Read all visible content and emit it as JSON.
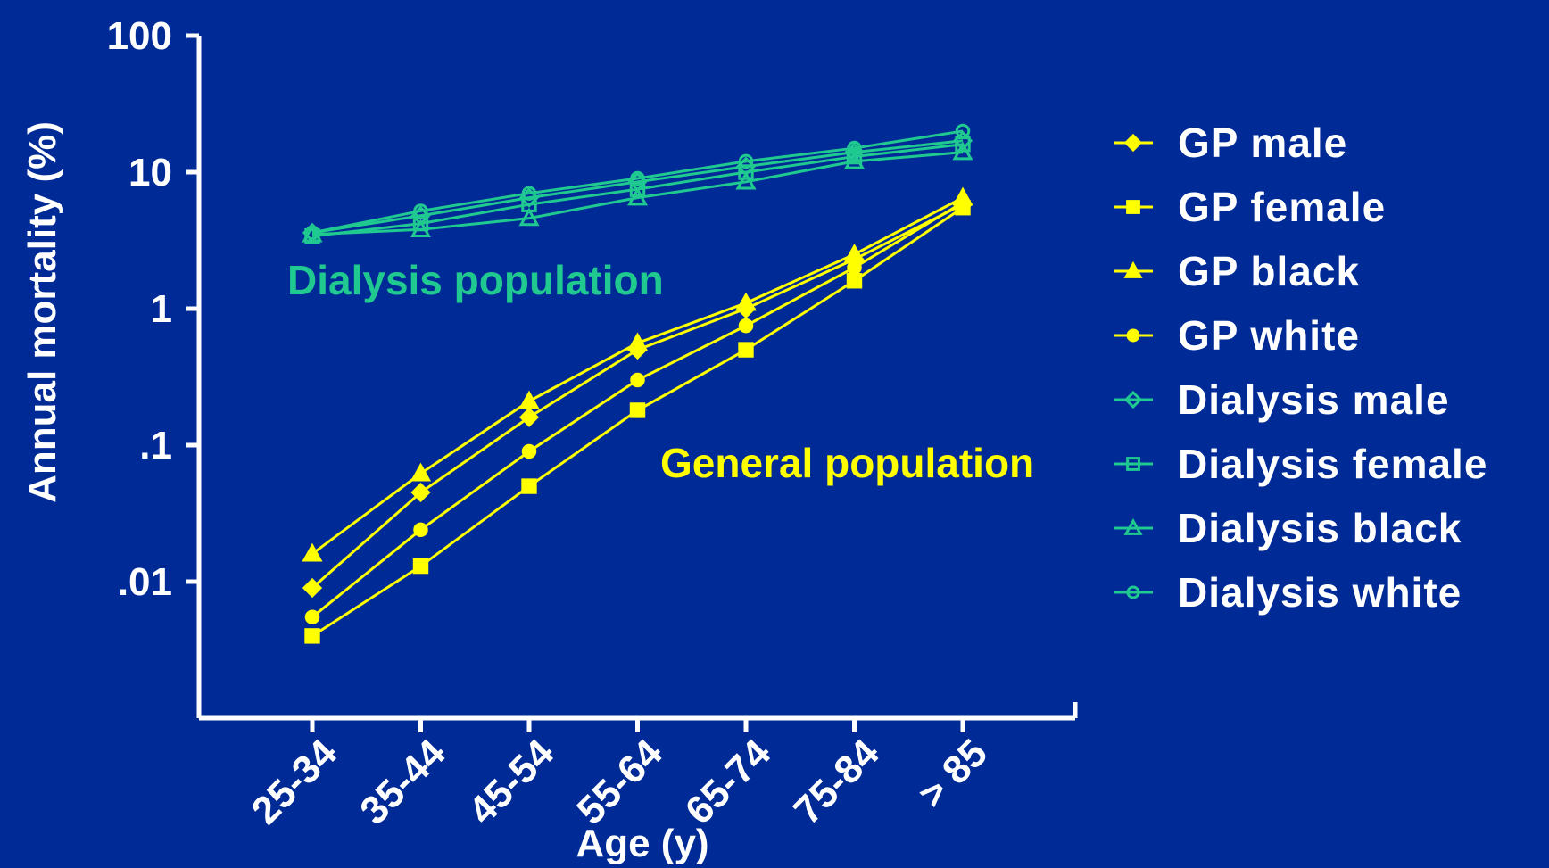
{
  "chart_data": {
    "type": "line",
    "ylabel": "Annual mortality (%)",
    "xlabel": "Age (y)",
    "y_scale": "log",
    "ylim": [
      0.001,
      100
    ],
    "yticks": [
      {
        "value": 100,
        "label": "100"
      },
      {
        "value": 10,
        "label": "10"
      },
      {
        "value": 1,
        "label": "1"
      },
      {
        "value": 0.1,
        "label": ".1"
      },
      {
        "value": 0.01,
        "label": ".01"
      }
    ],
    "categories": [
      "25-34",
      "35-44",
      "45-54",
      "55-64",
      "65-74",
      "75-84",
      "> 85"
    ],
    "grid": false,
    "legend_position": "right",
    "annotations": [
      {
        "text": "Dialysis population",
        "color": "#1fc98f"
      },
      {
        "text": "General population",
        "color": "#ffff00"
      }
    ],
    "series": [
      {
        "name": "GP male",
        "group": "gp",
        "marker": "diamond",
        "filled": true,
        "values": [
          0.009,
          0.045,
          0.16,
          0.5,
          1.0,
          2.3,
          5.8
        ]
      },
      {
        "name": "GP female",
        "group": "gp",
        "marker": "square",
        "filled": true,
        "values": [
          0.004,
          0.013,
          0.05,
          0.18,
          0.5,
          1.6,
          5.5
        ]
      },
      {
        "name": "GP black",
        "group": "gp",
        "marker": "triangle",
        "filled": true,
        "values": [
          0.016,
          0.062,
          0.21,
          0.56,
          1.1,
          2.5,
          6.5
        ]
      },
      {
        "name": "GP white",
        "group": "gp",
        "marker": "circle",
        "filled": true,
        "values": [
          0.0055,
          0.024,
          0.09,
          0.3,
          0.75,
          2.0,
          6.0
        ]
      },
      {
        "name": "Dialysis male",
        "group": "dialysis",
        "marker": "diamond",
        "filled": false,
        "values": [
          3.6,
          4.8,
          6.5,
          8.5,
          11,
          14,
          17
        ]
      },
      {
        "name": "Dialysis female",
        "group": "dialysis",
        "marker": "square",
        "filled": false,
        "values": [
          3.4,
          4.2,
          5.8,
          7.5,
          10,
          13,
          16
        ]
      },
      {
        "name": "Dialysis black",
        "group": "dialysis",
        "marker": "triangle",
        "filled": false,
        "values": [
          3.5,
          3.8,
          4.6,
          6.5,
          8.5,
          12,
          14
        ]
      },
      {
        "name": "Dialysis white",
        "group": "dialysis",
        "marker": "circle",
        "filled": false,
        "values": [
          3.6,
          5.2,
          7.0,
          9.0,
          12,
          15,
          20
        ]
      }
    ],
    "colors": {
      "gp": "#ffff00",
      "dialysis": "#1fc98f",
      "axis": "#ffffff",
      "background": "#002b96"
    }
  }
}
